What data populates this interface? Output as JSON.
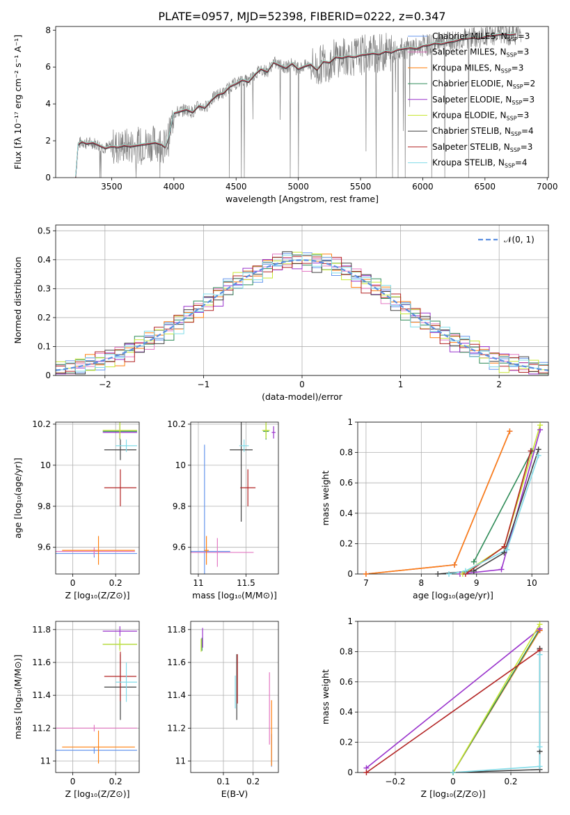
{
  "figure_title": "PLATE=0957, MJD=52398, FIBERID=0222, z=0.347",
  "colors": {
    "series": [
      "#6495ed",
      "#e377c2",
      "#ff7f0e",
      "#2e8b57",
      "#9932cc",
      "#c8e632",
      "#404040",
      "#b22222",
      "#7fdbe8"
    ],
    "data": "#808080"
  },
  "legend_top": [
    {
      "text": "Chabrier MILES, N",
      "sub": "SSP",
      "tail": "=3"
    },
    {
      "text": "Salpeter MILES, N",
      "sub": "SSP",
      "tail": "=3"
    },
    {
      "text": "Kroupa MILES, N",
      "sub": "SSP",
      "tail": "=3"
    },
    {
      "text": "Chabrier ELODIE, N",
      "sub": "SSP",
      "tail": "=2"
    },
    {
      "text": "Salpeter ELODIE, N",
      "sub": "SSP",
      "tail": "=3"
    },
    {
      "text": "Kroupa ELODIE, N",
      "sub": "SSP",
      "tail": "=3"
    },
    {
      "text": "Chabrier STELIB, N",
      "sub": "SSP",
      "tail": "=4"
    },
    {
      "text": "Salpeter STELIB, N",
      "sub": "SSP",
      "tail": "=3"
    },
    {
      "text": "Kroupa STELIB, N",
      "sub": "SSP",
      "tail": "=4"
    }
  ],
  "chart_data": [
    {
      "id": "spectrum",
      "type": "line",
      "xlabel": "wavelength [Angstrom, rest frame]",
      "ylabel": "Flux [fλ 10⁻¹⁷ erg cm⁻² s⁻¹ A⁻¹]",
      "xlim": [
        3050,
        7010
      ],
      "ylim": [
        0,
        8.2
      ],
      "xticks": [
        3500,
        4000,
        4500,
        5000,
        5500,
        6000,
        6500,
        7000
      ],
      "yticks": [
        0,
        2,
        4,
        6,
        8
      ],
      "grid": false,
      "legend": "upper right",
      "model_curve": {
        "x": [
          3210,
          3230,
          3260,
          3300,
          3350,
          3400,
          3450,
          3500,
          3550,
          3600,
          3650,
          3700,
          3750,
          3800,
          3850,
          3900,
          3930,
          3960,
          4000,
          4050,
          4100,
          4150,
          4200,
          4250,
          4300,
          4350,
          4400,
          4450,
          4500,
          4550,
          4600,
          4650,
          4700,
          4750,
          4800,
          4850,
          4900,
          4950,
          5000,
          5050,
          5100,
          5150,
          5200,
          5250,
          5300,
          5350,
          5400,
          5450,
          5500,
          5550,
          5600,
          5650,
          5700,
          5750,
          5800,
          5850,
          5900,
          5950,
          6000,
          6050,
          6100,
          6150,
          6200,
          6250,
          6300,
          6350,
          6400,
          6450,
          6500,
          6550,
          6600,
          6650,
          6700,
          6750
        ],
        "y": [
          0.0,
          1.8,
          1.95,
          1.85,
          1.9,
          1.75,
          1.6,
          1.7,
          1.65,
          1.75,
          1.7,
          1.75,
          1.8,
          1.85,
          1.9,
          1.8,
          1.65,
          2.2,
          3.5,
          3.6,
          3.7,
          3.55,
          3.9,
          3.8,
          4.2,
          4.5,
          4.6,
          4.95,
          5.1,
          5.3,
          5.2,
          5.6,
          5.9,
          5.75,
          6.25,
          6.1,
          5.95,
          6.2,
          5.9,
          6.05,
          6.15,
          5.85,
          6.3,
          6.25,
          6.55,
          6.5,
          6.6,
          6.55,
          6.65,
          6.7,
          6.75,
          6.7,
          6.85,
          6.8,
          6.95,
          7.0,
          7.05,
          7.0,
          7.15,
          7.2,
          7.3,
          7.25,
          7.35,
          7.4,
          7.5,
          7.55,
          7.6,
          7.55,
          7.65,
          7.7,
          7.75,
          7.8,
          7.75,
          7.8
        ]
      }
    },
    {
      "id": "residuals",
      "type": "bar",
      "xlabel": "(data-model)/error",
      "ylabel": "Normed distribution",
      "xlim": [
        -2.5,
        2.5
      ],
      "ylim": [
        0,
        0.52
      ],
      "xticks": [
        -2,
        -1,
        0,
        1,
        2
      ],
      "yticks": [
        0.0,
        0.1,
        0.2,
        0.3,
        0.4,
        0.5
      ],
      "grid": true,
      "legend": "upper right",
      "legend_label": "𝒩(0, 1)",
      "reference": {
        "name": "𝒩(0, 1)",
        "mean": 0,
        "sigma": 1
      },
      "bin_width": 0.1,
      "shape_pattern": [
        0.0,
        0.03,
        -0.02,
        0.02,
        -0.035,
        0.015,
        -0.01,
        0.025
      ]
    },
    {
      "id": "age-vs-Z",
      "type": "scatter",
      "xlabel": "Z [log₁₀(Z/Z⊙)]",
      "ylabel": "age  [log₁₀(age/yr)]",
      "xlim": [
        -0.08,
        0.31
      ],
      "ylim": [
        9.47,
        10.21
      ],
      "xticks": [
        0.0,
        0.2
      ],
      "yticks": [
        9.6,
        9.8,
        10.0,
        10.2
      ],
      "grid": true,
      "points": [
        {
          "s": 0,
          "x": 0.1,
          "y": 9.57,
          "xerr": 0.2,
          "yerr": 0.02
        },
        {
          "s": 1,
          "x": 0.1,
          "y": 9.58,
          "xerr": 0.19,
          "yerr": 0.02
        },
        {
          "s": 2,
          "x": 0.12,
          "y": 9.585,
          "xerr": 0.17,
          "yerr": 0.07
        },
        {
          "s": 3,
          "x": 0.22,
          "y": 10.165,
          "xerr": 0.08,
          "yerr": 0.04
        },
        {
          "s": 4,
          "x": 0.22,
          "y": 10.16,
          "xerr": 0.08,
          "yerr": 0.03
        },
        {
          "s": 5,
          "x": 0.22,
          "y": 10.17,
          "xerr": 0.08,
          "yerr": 0.04
        },
        {
          "s": 6,
          "x": 0.222,
          "y": 10.075,
          "xerr": 0.075,
          "yerr": 0.05
        },
        {
          "s": 7,
          "x": 0.222,
          "y": 9.89,
          "xerr": 0.075,
          "yerr": 0.09
        },
        {
          "s": 8,
          "x": 0.25,
          "y": 10.095,
          "xerr": 0.05,
          "yerr": 0.03
        }
      ]
    },
    {
      "id": "age-vs-mass",
      "type": "scatter",
      "xlabel": "mass [log₁₀(M/M⊙)]",
      "ylabel": "",
      "xlim": [
        10.92,
        11.84
      ],
      "ylim": [
        9.47,
        10.21
      ],
      "xticks": [
        11.0,
        11.5
      ],
      "yticks": [
        9.6,
        9.8,
        10.0,
        10.2
      ],
      "grid": true,
      "points": [
        {
          "s": 0,
          "x": 11.065,
          "y": 9.58,
          "xerr": 0.27,
          "yerr": 0.52
        },
        {
          "s": 1,
          "x": 11.2,
          "y": 9.575,
          "xerr": 0.38,
          "yerr": 0.07
        },
        {
          "s": 2,
          "x": 11.085,
          "y": 9.585,
          "xerr": 0.025,
          "yerr": 0.07
        },
        {
          "s": 3,
          "x": 11.71,
          "y": 10.165,
          "xerr": 0.03,
          "yerr": 0.04
        },
        {
          "s": 4,
          "x": 11.79,
          "y": 10.16,
          "xerr": 0.02,
          "yerr": 0.03
        },
        {
          "s": 5,
          "x": 11.71,
          "y": 10.17,
          "xerr": 0.04,
          "yerr": 0.04
        },
        {
          "s": 6,
          "x": 11.45,
          "y": 10.075,
          "xerr": 0.12,
          "yerr": 0.35
        },
        {
          "s": 7,
          "x": 11.52,
          "y": 9.89,
          "xerr": 0.08,
          "yerr": 0.09
        },
        {
          "s": 8,
          "x": 11.48,
          "y": 10.095,
          "xerr": 0.05,
          "yerr": 0.03
        }
      ]
    },
    {
      "id": "cumulative-mass-vs-age",
      "type": "line",
      "xlabel": "age  [log₁₀(age/yr)]",
      "ylabel": "mass weight",
      "xlim": [
        6.85,
        10.3
      ],
      "ylim": [
        0,
        1.0
      ],
      "xticks": [
        7,
        8,
        9,
        10
      ],
      "yticks": [
        0.0,
        0.2,
        0.4,
        0.6,
        0.8,
        1.0
      ],
      "grid": true,
      "series": [
        {
          "s": 0,
          "x": [
            7.0,
            8.6,
            9.6
          ],
          "y": [
            0.0,
            0.06,
            0.94
          ]
        },
        {
          "s": 1,
          "x": [
            7.0,
            8.6,
            9.6
          ],
          "y": [
            0.0,
            0.06,
            0.94
          ]
        },
        {
          "s": 2,
          "x": [
            7.0,
            8.6,
            9.6
          ],
          "y": [
            0.0,
            0.06,
            0.94
          ]
        },
        {
          "s": 3,
          "x": [
            8.95,
            10.0
          ],
          "y": [
            0.08,
            0.81
          ]
        },
        {
          "s": 4,
          "x": [
            8.7,
            9.45,
            10.15
          ],
          "y": [
            0.0,
            0.03,
            0.95
          ]
        },
        {
          "s": 5,
          "x": [
            8.75,
            9.5,
            10.15
          ],
          "y": [
            0.0,
            0.18,
            0.98
          ]
        },
        {
          "s": 6,
          "x": [
            8.3,
            8.95,
            9.5,
            10.12
          ],
          "y": [
            0.0,
            0.02,
            0.14,
            0.82
          ]
        },
        {
          "s": 7,
          "x": [
            8.8,
            9.5,
            9.98
          ],
          "y": [
            0.0,
            0.18,
            0.81
          ]
        },
        {
          "s": 8,
          "x": [
            8.5,
            8.8,
            9.55,
            10.12
          ],
          "y": [
            0.0,
            0.02,
            0.16,
            0.78
          ]
        }
      ]
    },
    {
      "id": "mass-vs-Z",
      "type": "scatter",
      "xlabel": "Z [log₁₀(Z/Z⊙)]",
      "ylabel": "mass [log₁₀(M/M⊙)]",
      "xlim": [
        -0.08,
        0.31
      ],
      "ylim": [
        10.93,
        11.85
      ],
      "xticks": [
        0.0,
        0.2
      ],
      "yticks": [
        11.0,
        11.2,
        11.4,
        11.6,
        11.8
      ],
      "grid": true,
      "points": [
        {
          "s": 0,
          "x": 0.1,
          "y": 11.065,
          "xerr": 0.2,
          "yerr": 0.02
        },
        {
          "s": 1,
          "x": 0.1,
          "y": 11.2,
          "xerr": 0.2,
          "yerr": 0.02
        },
        {
          "s": 2,
          "x": 0.12,
          "y": 11.085,
          "xerr": 0.17,
          "yerr": 0.1
        },
        {
          "s": 3,
          "x": 0.22,
          "y": 11.71,
          "xerr": 0.08,
          "yerr": 0.03
        },
        {
          "s": 4,
          "x": 0.22,
          "y": 11.79,
          "xerr": 0.08,
          "yerr": 0.03
        },
        {
          "s": 5,
          "x": 0.22,
          "y": 11.71,
          "xerr": 0.08,
          "yerr": 0.04
        },
        {
          "s": 6,
          "x": 0.222,
          "y": 11.45,
          "xerr": 0.075,
          "yerr": 0.2
        },
        {
          "s": 7,
          "x": 0.222,
          "y": 11.515,
          "xerr": 0.075,
          "yerr": 0.15
        },
        {
          "s": 8,
          "x": 0.25,
          "y": 11.48,
          "xerr": 0.05,
          "yerr": 0.12
        }
      ]
    },
    {
      "id": "mass-vs-EBV",
      "type": "scatter",
      "xlabel": "E(B-V)",
      "ylabel": "",
      "xlim": [
        -0.01,
        0.285
      ],
      "ylim": [
        10.93,
        11.85
      ],
      "xticks": [
        0.1,
        0.2
      ],
      "yticks": [
        11.0,
        11.2,
        11.4,
        11.6,
        11.8
      ],
      "grid": true,
      "points": [
        {
          "s": 0,
          "x": 0.262,
          "y": 11.065,
          "xerr": 0,
          "yerr": 0.1
        },
        {
          "s": 1,
          "x": 0.255,
          "y": 11.32,
          "xerr": 0,
          "yerr": 0.22
        },
        {
          "s": 2,
          "x": 0.262,
          "y": 11.17,
          "xerr": 0,
          "yerr": 0.2
        },
        {
          "s": 3,
          "x": 0.028,
          "y": 11.71,
          "xerr": 0,
          "yerr": 0.04
        },
        {
          "s": 4,
          "x": 0.03,
          "y": 11.75,
          "xerr": 0,
          "yerr": 0.06
        },
        {
          "s": 5,
          "x": 0.025,
          "y": 11.705,
          "xerr": 0,
          "yerr": 0.04
        },
        {
          "s": 6,
          "x": 0.145,
          "y": 11.45,
          "xerr": 0,
          "yerr": 0.2
        },
        {
          "s": 7,
          "x": 0.147,
          "y": 11.5,
          "xerr": 0,
          "yerr": 0.15
        },
        {
          "s": 8,
          "x": 0.14,
          "y": 11.42,
          "xerr": 0,
          "yerr": 0.1
        }
      ]
    },
    {
      "id": "cumulative-mass-vs-Z",
      "type": "line",
      "xlabel": "Z [log₁₀(Z/Z⊙)]",
      "ylabel": "mass weight",
      "xlim": [
        -0.33,
        0.33
      ],
      "ylim": [
        0,
        1.0
      ],
      "xticks": [
        -0.2,
        0.0,
        0.2
      ],
      "yticks": [
        0.0,
        0.2,
        0.4,
        0.6,
        0.8,
        1.0
      ],
      "grid": true,
      "series": [
        {
          "s": 0,
          "x": [
            0.0,
            0.3,
            0.3
          ],
          "y": [
            0.0,
            0.94,
            0.94
          ]
        },
        {
          "s": 1,
          "x": [
            0.0,
            0.3,
            0.3
          ],
          "y": [
            0.0,
            0.94,
            0.94
          ]
        },
        {
          "s": 2,
          "x": [
            0.0,
            0.3,
            0.3
          ],
          "y": [
            0.0,
            0.94,
            0.94
          ]
        },
        {
          "s": 3,
          "x": [
            0.0,
            0.3
          ],
          "y": [
            0.0,
            0.95
          ]
        },
        {
          "s": 4,
          "x": [
            -0.3,
            0.3
          ],
          "y": [
            0.03,
            0.95
          ]
        },
        {
          "s": 5,
          "x": [
            0.0,
            0.3
          ],
          "y": [
            0.0,
            0.98
          ]
        },
        {
          "s": 6,
          "x": [
            0.0,
            0.3,
            0.3,
            0.3
          ],
          "y": [
            0.0,
            0.02,
            0.14,
            0.82
          ]
        },
        {
          "s": 7,
          "x": [
            -0.3,
            0.3
          ],
          "y": [
            0.0,
            0.81
          ]
        },
        {
          "s": 8,
          "x": [
            0.0,
            0.3,
            0.3,
            0.3
          ],
          "y": [
            0.0,
            0.04,
            0.17,
            0.78
          ]
        }
      ]
    }
  ]
}
